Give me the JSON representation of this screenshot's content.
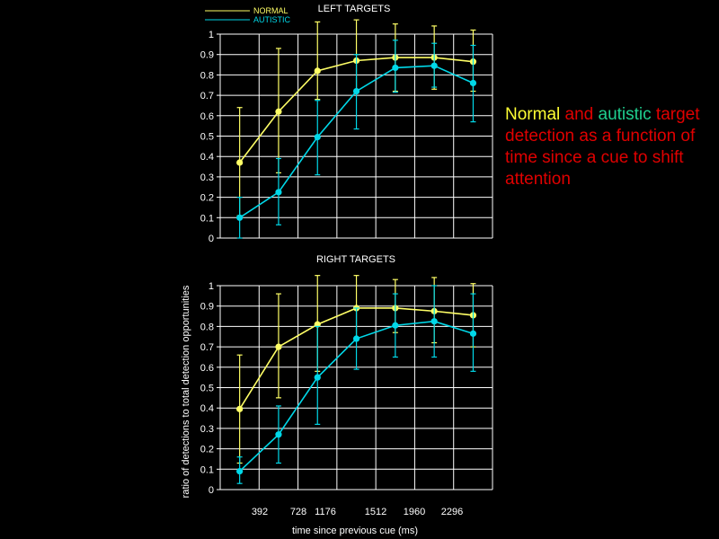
{
  "colors": {
    "background": "#000000",
    "grid": "#ffffff",
    "normal": "#ffff66",
    "autistic": "#00d8e8",
    "caption_red": "#e00000",
    "caption_yellow": "#ffff33",
    "caption_green": "#1fcf8f"
  },
  "caption": {
    "normal_word": "Normal",
    "and_word": " and ",
    "autistic_word": "autistic",
    "rest": " target detection as a function of time since a cue to shift attention"
  },
  "legend": {
    "normal_label": "NORMAL",
    "autistic_label": "AUTISTIC"
  },
  "shared_axes": {
    "ylabel": "ratio of detections to total detection opportunities",
    "xlabel": "time since previous cue (ms)",
    "x_tick_labels": [
      "392",
      "728",
      "1176",
      "1512",
      "1960",
      "2296"
    ]
  },
  "chart_data": [
    {
      "type": "line",
      "title": "LEFT TARGETS",
      "xlabel": "",
      "ylabel": "",
      "ylim": [
        0,
        1
      ],
      "y_ticks": [
        "0",
        "0.1",
        "0.2",
        "0.3",
        "0.4",
        "0.5",
        "0.6",
        "0.7",
        "0.8",
        "0.9",
        "1"
      ],
      "x_positions": [
        1,
        2,
        3,
        4,
        5,
        6,
        7
      ],
      "grid": true,
      "series": [
        {
          "name": "NORMAL",
          "color": "#ffff66",
          "values": [
            0.37,
            0.62,
            0.82,
            0.87,
            0.885,
            0.885,
            0.865
          ],
          "err_low": [
            0.11,
            0.32,
            0.68,
            0.72,
            0.72,
            0.73,
            0.72
          ],
          "err_high": [
            0.64,
            0.93,
            1.06,
            1.07,
            1.05,
            1.04,
            1.02
          ]
        },
        {
          "name": "AUTISTIC",
          "color": "#00d8e8",
          "values": [
            0.1,
            0.225,
            0.495,
            0.72,
            0.835,
            0.845,
            0.76
          ],
          "err_low": [
            0.0,
            0.065,
            0.31,
            0.535,
            0.715,
            0.74,
            0.57
          ],
          "err_high": [
            0.2,
            0.39,
            0.675,
            0.9,
            0.97,
            0.955,
            0.945
          ]
        }
      ]
    },
    {
      "type": "line",
      "title": "RIGHT TARGETS",
      "xlabel": "time since previous cue (ms)",
      "ylabel": "ratio of detections to total detection opportunities",
      "ylim": [
        0,
        1
      ],
      "y_ticks": [
        "0",
        "0.1",
        "0.2",
        "0.3",
        "0.4",
        "0.5",
        "0.6",
        "0.7",
        "0.8",
        "0.9",
        "1"
      ],
      "x_positions": [
        1,
        2,
        3,
        4,
        5,
        6,
        7
      ],
      "grid": true,
      "series": [
        {
          "name": "NORMAL",
          "color": "#ffff66",
          "values": [
            0.395,
            0.7,
            0.81,
            0.89,
            0.89,
            0.875,
            0.855
          ],
          "err_low": [
            0.13,
            0.45,
            0.58,
            0.74,
            0.77,
            0.72,
            0.7
          ],
          "err_high": [
            0.66,
            0.96,
            1.05,
            1.05,
            1.03,
            1.04,
            1.01
          ]
        },
        {
          "name": "AUTISTIC",
          "color": "#00d8e8",
          "values": [
            0.09,
            0.27,
            0.55,
            0.74,
            0.805,
            0.825,
            0.765
          ],
          "err_low": [
            0.03,
            0.13,
            0.32,
            0.59,
            0.65,
            0.65,
            0.58
          ],
          "err_high": [
            0.16,
            0.41,
            0.8,
            0.89,
            0.96,
            1.0,
            0.96
          ]
        }
      ]
    }
  ]
}
